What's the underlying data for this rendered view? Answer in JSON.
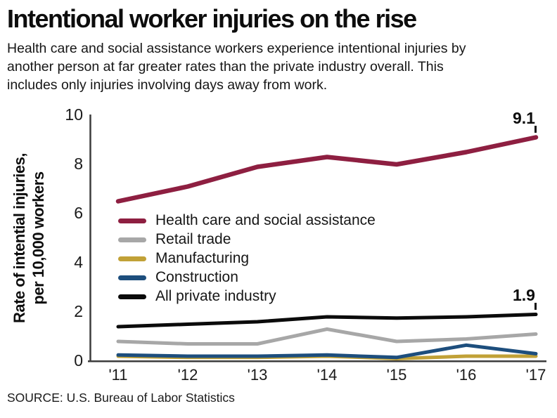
{
  "header": {
    "title": "Intentional worker injuries on the rise",
    "subtitle_lines": [
      "Health care and social assistance workers experience intentional injuries by",
      "another person at far greater rates than the private industry overall. This",
      "includes only injuries involving days away from work."
    ]
  },
  "source": "SOURCE: U.S. Bureau of Labor Statistics",
  "chart_data": {
    "type": "line",
    "ylabel_line1": "Rate of intential injuries,",
    "ylabel_line2": "per 10,000 workers",
    "categories": [
      2011,
      2012,
      2013,
      2014,
      2015,
      2016,
      2017
    ],
    "x_tick_labels": [
      "'11",
      "'12",
      "'13",
      "'14",
      "'15",
      "'16",
      "'17"
    ],
    "y_ticks": [
      0,
      2,
      4,
      6,
      8,
      10
    ],
    "ylim": [
      0,
      10
    ],
    "grid": false,
    "legend_position": "inside-left-middle",
    "series": [
      {
        "name": "Health care and social assistance",
        "color": "#8e1f41",
        "width": 6.5,
        "values": [
          6.5,
          7.1,
          7.9,
          8.3,
          8.0,
          8.5,
          9.1
        ]
      },
      {
        "name": "Retail trade",
        "color": "#a7a7a7",
        "width": 5,
        "values": [
          0.8,
          0.7,
          0.7,
          1.3,
          0.8,
          0.9,
          1.1
        ]
      },
      {
        "name": "Manufacturing",
        "color": "#c1a137",
        "width": 5,
        "values": [
          0.2,
          0.15,
          0.15,
          0.2,
          0.1,
          0.2,
          0.2
        ]
      },
      {
        "name": "Construction",
        "color": "#1d4e7d",
        "width": 5,
        "values": [
          0.25,
          0.2,
          0.2,
          0.25,
          0.15,
          0.65,
          0.3
        ]
      },
      {
        "name": "All private industry",
        "color": "#0b0b0b",
        "width": 5,
        "values": [
          1.4,
          1.5,
          1.6,
          1.8,
          1.75,
          1.8,
          1.9
        ]
      }
    ],
    "draw_order": [
      1,
      2,
      3,
      4,
      0
    ],
    "annotations": [
      {
        "label": "9.1",
        "x_index": 6,
        "value": 9.1
      },
      {
        "label": "1.9",
        "x_index": 6,
        "value": 1.9
      }
    ]
  }
}
